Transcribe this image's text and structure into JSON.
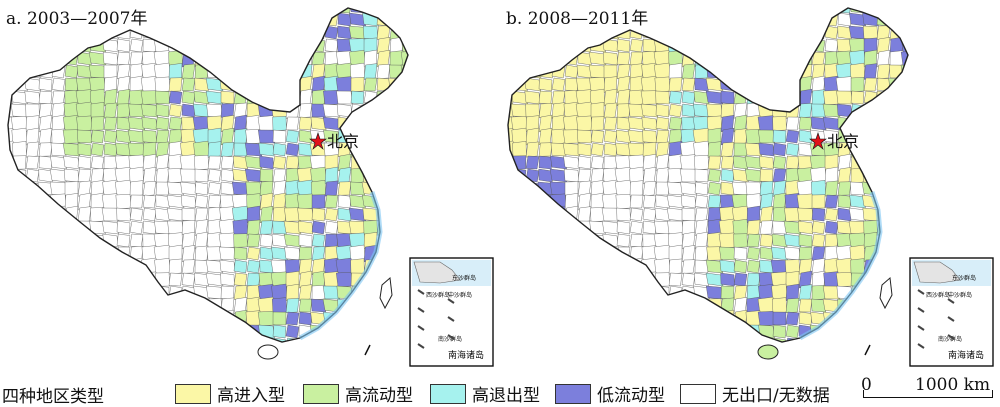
{
  "panels": [
    {
      "title": "a. 2003—2007年",
      "capital_label": "北京",
      "inset_labels": [
        "东沙群岛",
        "西沙群岛",
        "中沙群岛",
        "南沙群岛",
        "南海诸岛"
      ]
    },
    {
      "title": "b. 2008—2011年",
      "capital_label": "北京",
      "inset_labels": [
        "东沙群岛",
        "西沙群岛",
        "中沙群岛",
        "南沙群岛",
        "南海诸岛"
      ]
    }
  ],
  "legend": {
    "title": "四种地区类型",
    "items": [
      {
        "label": "高进入型",
        "color": "#fbf7a6"
      },
      {
        "label": "高流动型",
        "color": "#c9f0a0"
      },
      {
        "label": "高退出型",
        "color": "#a6f2ee"
      },
      {
        "label": "低流动型",
        "color": "#7c7fdc"
      },
      {
        "label": "无出口/无数据",
        "color": "#ffffff"
      }
    ]
  },
  "scale": {
    "zero": "0",
    "length": "1000 km"
  },
  "colors": {
    "border": "#222222",
    "sea": "#7cc4f2",
    "capital_star": "#e0121a"
  }
}
